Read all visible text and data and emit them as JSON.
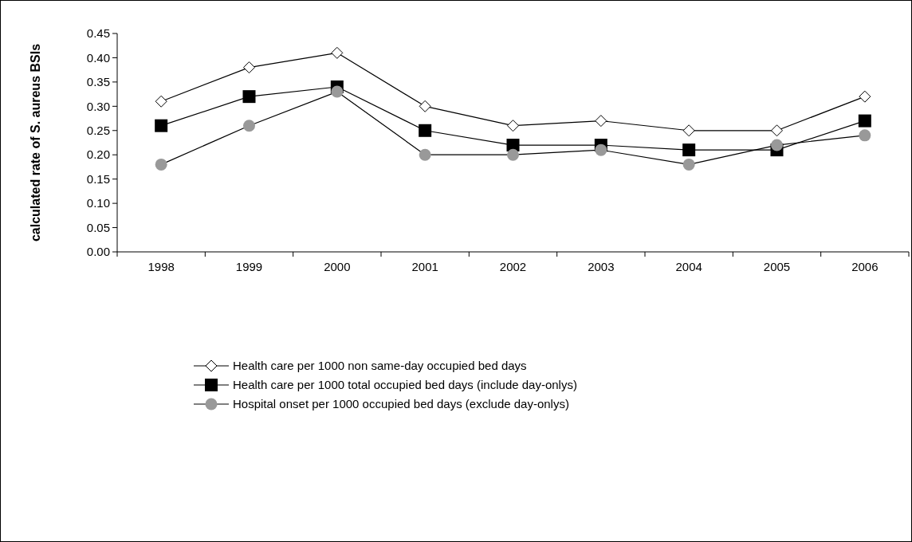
{
  "chart_data": {
    "type": "line",
    "ylabel": "calculated rate of S. aureus BSIs",
    "categories": [
      "1998",
      "1999",
      "2000",
      "2001",
      "2002",
      "2003",
      "2004",
      "2005",
      "2006"
    ],
    "ylim": [
      0,
      0.45
    ],
    "yticks": [
      {
        "value": 0,
        "label": "0.00"
      },
      {
        "value": 0.05,
        "label": "0.05"
      },
      {
        "value": 0.1,
        "label": "0.10"
      },
      {
        "value": 0.15,
        "label": "0.15"
      },
      {
        "value": 0.2,
        "label": "0.20"
      },
      {
        "value": 0.25,
        "label": "0.25"
      },
      {
        "value": 0.3,
        "label": "0.30"
      },
      {
        "value": 0.35,
        "label": "0.35"
      },
      {
        "value": 0.4,
        "label": "0.40"
      },
      {
        "value": 0.45,
        "label": "0.45"
      }
    ],
    "grid": false,
    "legend": "bottom",
    "line_style": "solid",
    "series": [
      {
        "name": "Health care per 1000 non same-day occupied bed days",
        "color": "#000000",
        "marker": "diamond",
        "values": [
          0.31,
          0.38,
          0.41,
          0.3,
          0.26,
          0.27,
          0.25,
          0.25,
          0.32
        ]
      },
      {
        "name": "Health care per 1000 total occupied bed days (include day-onlys)",
        "color": "#000000",
        "marker": "square",
        "values": [
          0.26,
          0.32,
          0.34,
          0.25,
          0.22,
          0.22,
          0.21,
          0.21,
          0.27
        ]
      },
      {
        "name": "Hospital onset per 1000 occupied bed days (exclude day-onlys)",
        "color": "#999999",
        "marker": "circle",
        "values": [
          0.18,
          0.26,
          0.33,
          0.2,
          0.2,
          0.21,
          0.18,
          0.22,
          0.24
        ]
      }
    ]
  }
}
